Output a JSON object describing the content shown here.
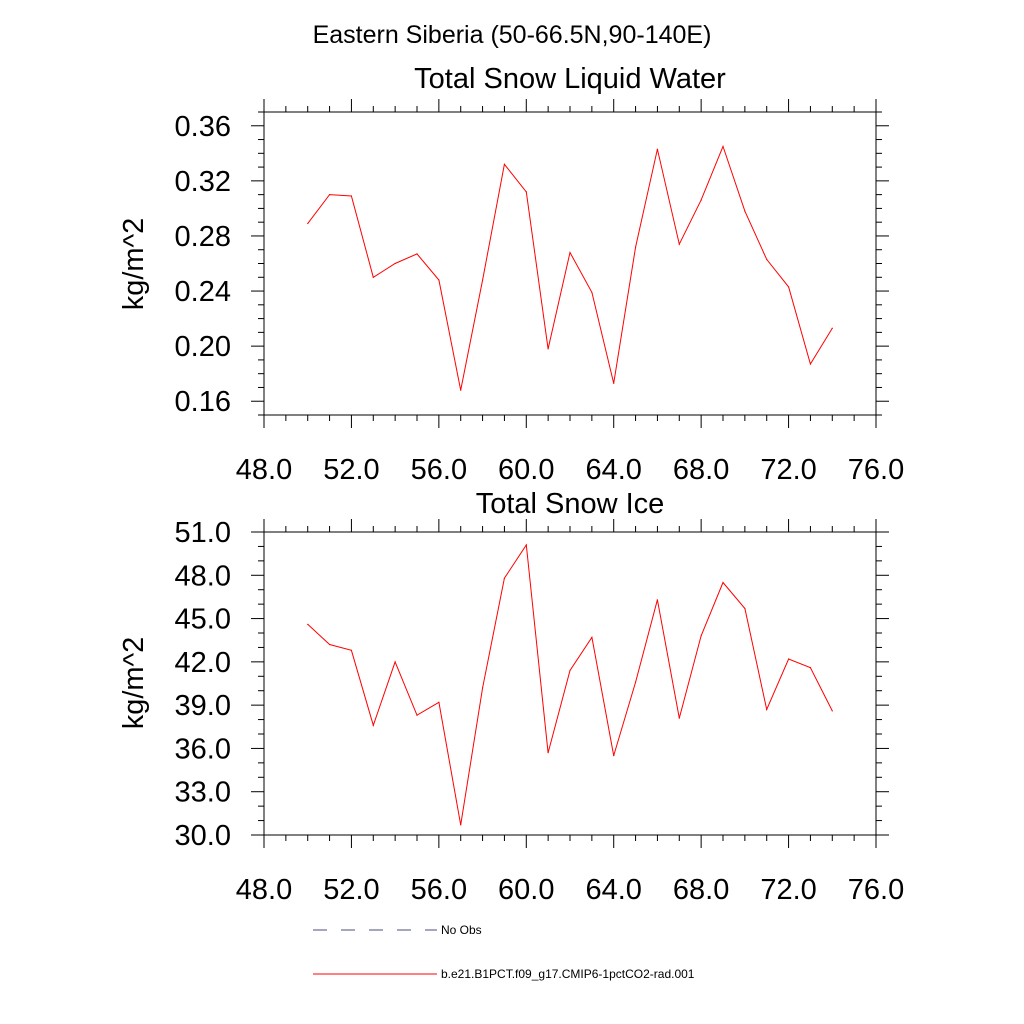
{
  "figure_title": "Eastern Siberia (50-66.5N,90-140E)",
  "chart_data": [
    {
      "type": "line",
      "title": "Total Snow Liquid Water",
      "xlabel": "",
      "ylabel": "kg/m^2",
      "xlim": [
        48,
        76
      ],
      "ylim": [
        0.15,
        0.37
      ],
      "x_ticks": [
        48,
        52,
        56,
        60,
        64,
        68,
        72,
        76
      ],
      "x_tick_labels": [
        "48.0",
        "52.0",
        "56.0",
        "60.0",
        "64.0",
        "68.0",
        "72.0",
        "76.0"
      ],
      "y_ticks": [
        0.16,
        0.2,
        0.24,
        0.28,
        0.32,
        0.36
      ],
      "y_tick_labels": [
        "0.16",
        "0.20",
        "0.24",
        "0.28",
        "0.32",
        "0.36"
      ],
      "x_minor_step": 1,
      "y_minor_step": 0.01,
      "grid": false,
      "x": [
        50,
        51,
        52,
        53,
        54,
        55,
        56,
        57,
        58,
        59,
        60,
        61,
        62,
        63,
        64,
        65,
        66,
        67,
        68,
        69,
        70,
        71,
        72,
        73,
        74
      ],
      "series": [
        {
          "name": "b.e21.B1PCT.f09_g17.CMIP6-1pctCO2-rad.001",
          "color": "#ff0000",
          "values": [
            0.289,
            0.31,
            0.309,
            0.25,
            0.26,
            0.267,
            0.248,
            0.168,
            0.248,
            0.332,
            0.312,
            0.198,
            0.268,
            0.239,
            0.173,
            0.272,
            0.343,
            0.274,
            0.306,
            0.345,
            0.298,
            0.263,
            0.243,
            0.187,
            0.213
          ]
        }
      ]
    },
    {
      "type": "line",
      "title": "Total Snow Ice",
      "xlabel": "",
      "ylabel": "kg/m^2",
      "xlim": [
        48,
        76
      ],
      "ylim": [
        30,
        51
      ],
      "x_ticks": [
        48,
        52,
        56,
        60,
        64,
        68,
        72,
        76
      ],
      "x_tick_labels": [
        "48.0",
        "52.0",
        "56.0",
        "60.0",
        "64.0",
        "68.0",
        "72.0",
        "76.0"
      ],
      "y_ticks": [
        30,
        33,
        36,
        39,
        42,
        45,
        48,
        51
      ],
      "y_tick_labels": [
        "30.0",
        "33.0",
        "36.0",
        "39.0",
        "42.0",
        "45.0",
        "48.0",
        "51.0"
      ],
      "x_minor_step": 1,
      "y_minor_step": 1,
      "grid": false,
      "x": [
        50,
        51,
        52,
        53,
        54,
        55,
        56,
        57,
        58,
        59,
        60,
        61,
        62,
        63,
        64,
        65,
        66,
        67,
        68,
        69,
        70,
        71,
        72,
        73,
        74
      ],
      "series": [
        {
          "name": "b.e21.B1PCT.f09_g17.CMIP6-1pctCO2-rad.001",
          "color": "#ff0000",
          "values": [
            44.6,
            43.2,
            42.8,
            37.6,
            42.0,
            38.3,
            39.2,
            30.7,
            40.2,
            47.8,
            50.1,
            35.7,
            41.4,
            43.7,
            35.5,
            40.6,
            46.3,
            38.1,
            43.8,
            47.5,
            45.7,
            38.7,
            42.2,
            41.6,
            38.6
          ]
        }
      ]
    }
  ],
  "legend": {
    "placement": "bottom",
    "items": [
      {
        "label": "No Obs",
        "color": "#4a4f7a",
        "style": "dashed"
      },
      {
        "label": "b.e21.B1PCT.f09_g17.CMIP6-1pctCO2-rad.001",
        "color": "#ff0000",
        "style": "solid"
      }
    ]
  }
}
